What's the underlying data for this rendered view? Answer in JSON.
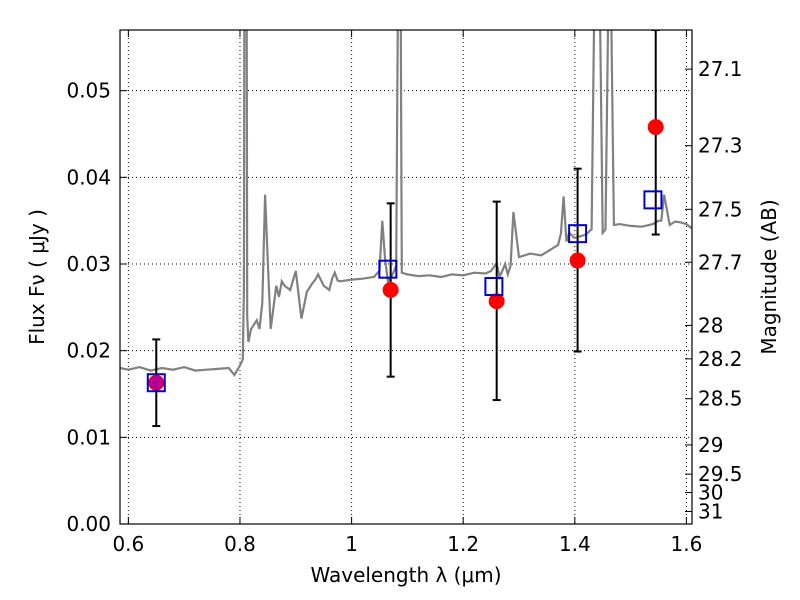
{
  "chart_data": {
    "type": "scatter",
    "xlabel": "Wavelength  λ (μm)",
    "ylabel": "Flux  Fν  ( μJy )",
    "ylabel_right": "Magnitude (AB)",
    "xlim": [
      0.585,
      1.61
    ],
    "ylim": [
      0.0,
      0.057
    ],
    "grid": true,
    "x_ticks": [
      {
        "value": 0.6,
        "label": "0.6"
      },
      {
        "value": 0.8,
        "label": "0.8"
      },
      {
        "value": 1.0,
        "label": "1"
      },
      {
        "value": 1.2,
        "label": "1.2"
      },
      {
        "value": 1.4,
        "label": "1.4"
      },
      {
        "value": 1.6,
        "label": "1.6"
      }
    ],
    "y_ticks": [
      {
        "value": 0.0,
        "label": "0.00"
      },
      {
        "value": 0.01,
        "label": "0.01"
      },
      {
        "value": 0.02,
        "label": "0.02"
      },
      {
        "value": 0.03,
        "label": "0.03"
      },
      {
        "value": 0.04,
        "label": "0.04"
      },
      {
        "value": 0.05,
        "label": "0.05"
      }
    ],
    "mag_ticks": [
      {
        "mag": 27.1,
        "label": "27.1"
      },
      {
        "mag": 27.3,
        "label": "27.3"
      },
      {
        "mag": 27.5,
        "label": "27.5"
      },
      {
        "mag": 27.7,
        "label": "27.7"
      },
      {
        "mag": 28.0,
        "label": "28"
      },
      {
        "mag": 28.2,
        "label": "28.2"
      },
      {
        "mag": 28.5,
        "label": "28.5"
      },
      {
        "mag": 29.0,
        "label": "29"
      },
      {
        "mag": 29.5,
        "label": "29.5"
      },
      {
        "mag": 30.0,
        "label": "30"
      },
      {
        "mag": 31.0,
        "label": "31"
      }
    ],
    "series": [
      {
        "kind": "observed",
        "color": "#ff0000",
        "marker": "circle",
        "points": [
          {
            "x": 0.65,
            "y": 0.0163,
            "yerr_low": 0.0113,
            "yerr_high": 0.0213
          },
          {
            "x": 1.07,
            "y": 0.027,
            "yerr_low": 0.017,
            "yerr_high": 0.037
          },
          {
            "x": 1.26,
            "y": 0.0257,
            "yerr_low": 0.0143,
            "yerr_high": 0.0372
          },
          {
            "x": 1.405,
            "y": 0.0304,
            "yerr_low": 0.0199,
            "yerr_high": 0.041
          },
          {
            "x": 1.545,
            "y": 0.0458,
            "yerr_low": 0.0334,
            "yerr_high": 0.057
          }
        ]
      },
      {
        "kind": "model-bandpass",
        "color": "#0000cc",
        "marker": "square-open",
        "points": [
          {
            "x": 0.65,
            "y": 0.0163
          },
          {
            "x": 1.065,
            "y": 0.0294
          },
          {
            "x": 1.255,
            "y": 0.0274
          },
          {
            "x": 1.405,
            "y": 0.0335
          },
          {
            "x": 1.54,
            "y": 0.0374
          }
        ]
      },
      {
        "kind": "spectrum",
        "color": "#808080",
        "marker": "line",
        "x": [
          0.585,
          0.6,
          0.62,
          0.64,
          0.66,
          0.68,
          0.7,
          0.72,
          0.74,
          0.76,
          0.78,
          0.79,
          0.8,
          0.805,
          0.807,
          0.808,
          0.81,
          0.812,
          0.813,
          0.815,
          0.82,
          0.83,
          0.835,
          0.84,
          0.845,
          0.85,
          0.855,
          0.86,
          0.865,
          0.87,
          0.875,
          0.88,
          0.89,
          0.9,
          0.91,
          0.92,
          0.93,
          0.935,
          0.94,
          0.95,
          0.96,
          0.965,
          0.97,
          0.975,
          0.98,
          1.0,
          1.02,
          1.04,
          1.05,
          1.055,
          1.06,
          1.065,
          1.07,
          1.075,
          1.08,
          1.083,
          1.084,
          1.085,
          1.087,
          1.088,
          1.09,
          1.1,
          1.12,
          1.14,
          1.16,
          1.18,
          1.2,
          1.22,
          1.24,
          1.25,
          1.26,
          1.265,
          1.27,
          1.275,
          1.28,
          1.285,
          1.29,
          1.3,
          1.32,
          1.34,
          1.36,
          1.37,
          1.375,
          1.38,
          1.385,
          1.39,
          1.4,
          1.42,
          1.43,
          1.435,
          1.44,
          1.445,
          1.45,
          1.455,
          1.46,
          1.465,
          1.47,
          1.48,
          1.5,
          1.52,
          1.54,
          1.55,
          1.555,
          1.56,
          1.57,
          1.58,
          1.59,
          1.6,
          1.61
        ],
        "y": [
          0.018,
          0.0178,
          0.0181,
          0.0177,
          0.018,
          0.0178,
          0.0181,
          0.0177,
          0.0178,
          0.0179,
          0.018,
          0.0172,
          0.0183,
          0.019,
          0.027,
          0.06,
          0.06,
          0.06,
          0.024,
          0.021,
          0.0225,
          0.0235,
          0.0225,
          0.0255,
          0.038,
          0.03,
          0.0225,
          0.025,
          0.0275,
          0.0262,
          0.028,
          0.0275,
          0.027,
          0.0292,
          0.0237,
          0.0268,
          0.0278,
          0.0282,
          0.0288,
          0.0275,
          0.027,
          0.0283,
          0.029,
          0.0281,
          0.028,
          0.0282,
          0.0283,
          0.0285,
          0.0292,
          0.035,
          0.0305,
          0.028,
          0.0284,
          0.029,
          0.0298,
          0.06,
          0.06,
          0.06,
          0.06,
          0.06,
          0.029,
          0.0288,
          0.0286,
          0.0287,
          0.0285,
          0.0288,
          0.0287,
          0.029,
          0.0289,
          0.0292,
          0.0301,
          0.0285,
          0.0292,
          0.03,
          0.0288,
          0.0298,
          0.036,
          0.0308,
          0.0312,
          0.031,
          0.0318,
          0.0322,
          0.0335,
          0.0378,
          0.0326,
          0.0336,
          0.033,
          0.0334,
          0.034,
          0.06,
          0.06,
          0.06,
          0.0336,
          0.034,
          0.06,
          0.06,
          0.0345,
          0.0346,
          0.0344,
          0.0343,
          0.0346,
          0.035,
          0.035,
          0.038,
          0.0345,
          0.0349,
          0.0348,
          0.0346,
          0.0341
        ]
      }
    ]
  }
}
